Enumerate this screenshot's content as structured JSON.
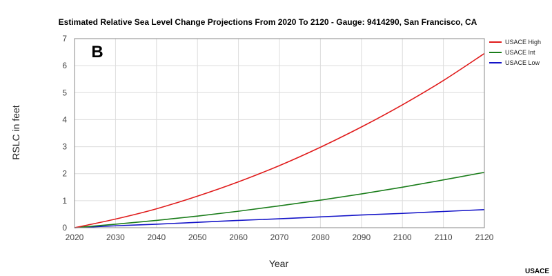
{
  "chart_data": {
    "type": "line",
    "title": "Estimated Relative Sea Level Change Projections From 2020 To 2120 - Gauge: 9414290, San Francisco, CA",
    "xlabel": "Year",
    "ylabel": "RSLC in feet",
    "panel_label": "B",
    "credit": "USACE",
    "xlim": [
      2020,
      2120
    ],
    "ylim": [
      0,
      7
    ],
    "x_ticks": [
      2020,
      2030,
      2040,
      2050,
      2060,
      2070,
      2080,
      2090,
      2100,
      2110,
      2120
    ],
    "y_ticks": [
      0,
      1,
      2,
      3,
      4,
      5,
      6,
      7
    ],
    "grid": true,
    "legend_position": "right",
    "x": [
      2020,
      2030,
      2040,
      2050,
      2060,
      2070,
      2080,
      2090,
      2100,
      2110,
      2120
    ],
    "series": [
      {
        "name": "USACE High",
        "color": "#e01b1b",
        "values": [
          0.0,
          0.32,
          0.7,
          1.17,
          1.7,
          2.3,
          2.98,
          3.73,
          4.55,
          5.45,
          6.45
        ]
      },
      {
        "name": "USACE Int",
        "color": "#1a7d1a",
        "values": [
          0.0,
          0.13,
          0.27,
          0.43,
          0.61,
          0.81,
          1.02,
          1.25,
          1.5,
          1.77,
          2.05
        ]
      },
      {
        "name": "USACE Low",
        "color": "#1414c8",
        "values": [
          0.0,
          0.07,
          0.13,
          0.2,
          0.27,
          0.33,
          0.4,
          0.47,
          0.53,
          0.6,
          0.67
        ]
      }
    ]
  }
}
